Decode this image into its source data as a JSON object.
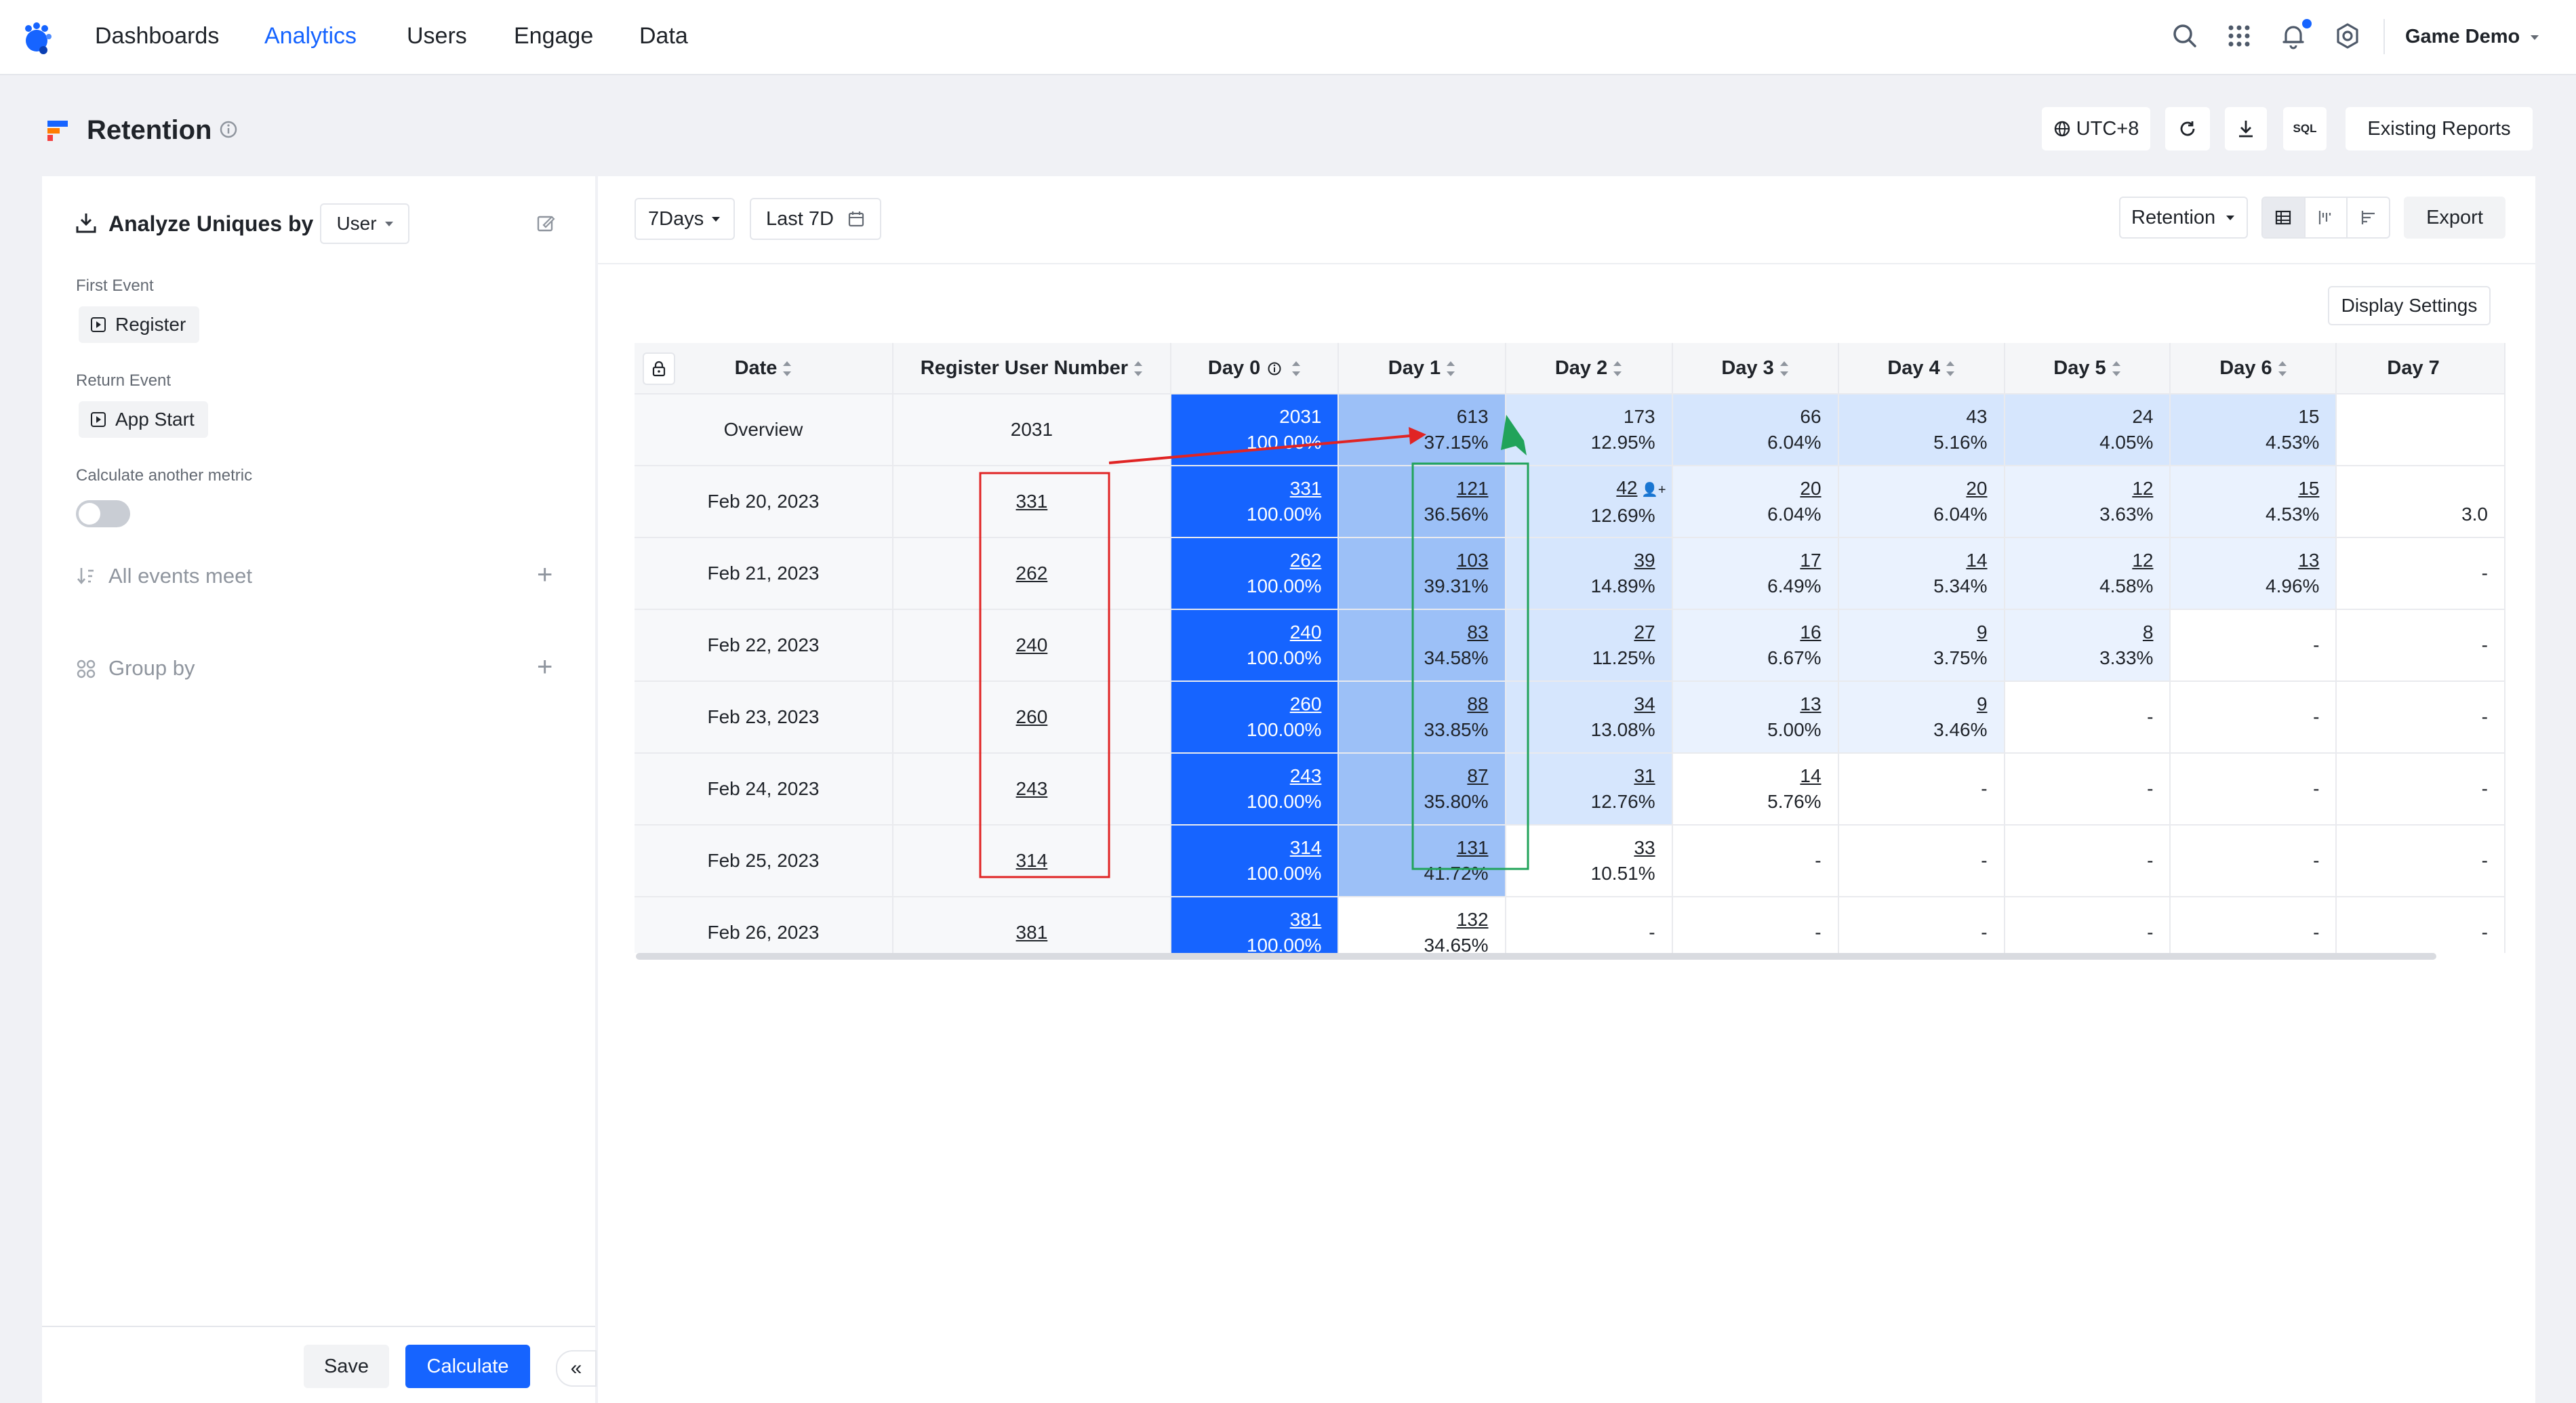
{
  "nav": {
    "items": [
      "Dashboards",
      "Analytics",
      "Users",
      "Engage",
      "Data"
    ],
    "active": "Analytics",
    "project": "Game Demo"
  },
  "header": {
    "title": "Retention",
    "timezone": "UTC+8",
    "sql_label": "SQL",
    "existing_reports": "Existing Reports"
  },
  "left_panel": {
    "analyze_label": "Analyze Uniques by",
    "analyze_value": "User",
    "first_event_label": "First Event",
    "first_event": "Register",
    "return_event_label": "Return Event",
    "return_event": "App Start",
    "calc_metric_label": "Calculate another metric",
    "all_events_label": "All events meet",
    "group_by_label": "Group by",
    "save_label": "Save",
    "calculate_label": "Calculate",
    "collapse_glyph": "«"
  },
  "toolbar": {
    "period": "7Days",
    "range": "Last 7D",
    "metric": "Retention",
    "export": "Export",
    "display_settings": "Display Settings"
  },
  "table": {
    "headers": [
      "Date",
      "Register User Number",
      "Day 0",
      "Day 1",
      "Day 2",
      "Day 3",
      "Day 4",
      "Day 5",
      "Day 6",
      "Day 7"
    ],
    "rows": [
      {
        "date": "Overview",
        "reg": "2031",
        "days": [
          [
            "2031",
            "100.00%"
          ],
          [
            "613",
            "37.15%"
          ],
          [
            "173",
            "12.95%"
          ],
          [
            "66",
            "6.04%"
          ],
          [
            "43",
            "5.16%"
          ],
          [
            "24",
            "4.05%"
          ],
          [
            "15",
            "4.53%"
          ],
          [
            "",
            ""
          ]
        ]
      },
      {
        "date": "Feb 20, 2023",
        "reg": "331",
        "days": [
          [
            "331",
            "100.00%"
          ],
          [
            "121",
            "36.56%"
          ],
          [
            "42",
            "12.69%"
          ],
          [
            "20",
            "6.04%"
          ],
          [
            "20",
            "6.04%"
          ],
          [
            "12",
            "3.63%"
          ],
          [
            "15",
            "4.53%"
          ],
          [
            "",
            "3.0"
          ]
        ]
      },
      {
        "date": "Feb 21, 2023",
        "reg": "262",
        "days": [
          [
            "262",
            "100.00%"
          ],
          [
            "103",
            "39.31%"
          ],
          [
            "39",
            "14.89%"
          ],
          [
            "17",
            "6.49%"
          ],
          [
            "14",
            "5.34%"
          ],
          [
            "12",
            "4.58%"
          ],
          [
            "13",
            "4.96%"
          ],
          [
            "-",
            ""
          ]
        ]
      },
      {
        "date": "Feb 22, 2023",
        "reg": "240",
        "days": [
          [
            "240",
            "100.00%"
          ],
          [
            "83",
            "34.58%"
          ],
          [
            "27",
            "11.25%"
          ],
          [
            "16",
            "6.67%"
          ],
          [
            "9",
            "3.75%"
          ],
          [
            "8",
            "3.33%"
          ],
          [
            "-",
            ""
          ],
          [
            "-",
            ""
          ]
        ]
      },
      {
        "date": "Feb 23, 2023",
        "reg": "260",
        "days": [
          [
            "260",
            "100.00%"
          ],
          [
            "88",
            "33.85%"
          ],
          [
            "34",
            "13.08%"
          ],
          [
            "13",
            "5.00%"
          ],
          [
            "9",
            "3.46%"
          ],
          [
            "-",
            ""
          ],
          [
            "-",
            ""
          ],
          [
            "-",
            ""
          ]
        ]
      },
      {
        "date": "Feb 24, 2023",
        "reg": "243",
        "days": [
          [
            "243",
            "100.00%"
          ],
          [
            "87",
            "35.80%"
          ],
          [
            "31",
            "12.76%"
          ],
          [
            "14",
            "5.76%"
          ],
          [
            "-",
            ""
          ],
          [
            "-",
            ""
          ],
          [
            "-",
            ""
          ],
          [
            "-",
            ""
          ]
        ]
      },
      {
        "date": "Feb 25, 2023",
        "reg": "314",
        "days": [
          [
            "314",
            "100.00%"
          ],
          [
            "131",
            "41.72%"
          ],
          [
            "33",
            "10.51%"
          ],
          [
            "-",
            ""
          ],
          [
            "-",
            ""
          ],
          [
            "-",
            ""
          ],
          [
            "-",
            ""
          ],
          [
            "-",
            ""
          ]
        ]
      },
      {
        "date": "Feb 26, 2023",
        "reg": "381",
        "days": [
          [
            "381",
            "100.00%"
          ],
          [
            "132",
            "34.65%"
          ],
          [
            "-",
            ""
          ],
          [
            "-",
            ""
          ],
          [
            "-",
            ""
          ],
          [
            "-",
            ""
          ],
          [
            "-",
            ""
          ],
          [
            "-",
            ""
          ]
        ]
      }
    ]
  },
  "colors": {
    "brand": "#1664ff",
    "day1_fill": "#9cc0f7",
    "day2_fill": "#d6e6fd",
    "light_fill": "#eaf2fe",
    "annotation_red": "#e02424",
    "annotation_green": "#21a35a"
  }
}
